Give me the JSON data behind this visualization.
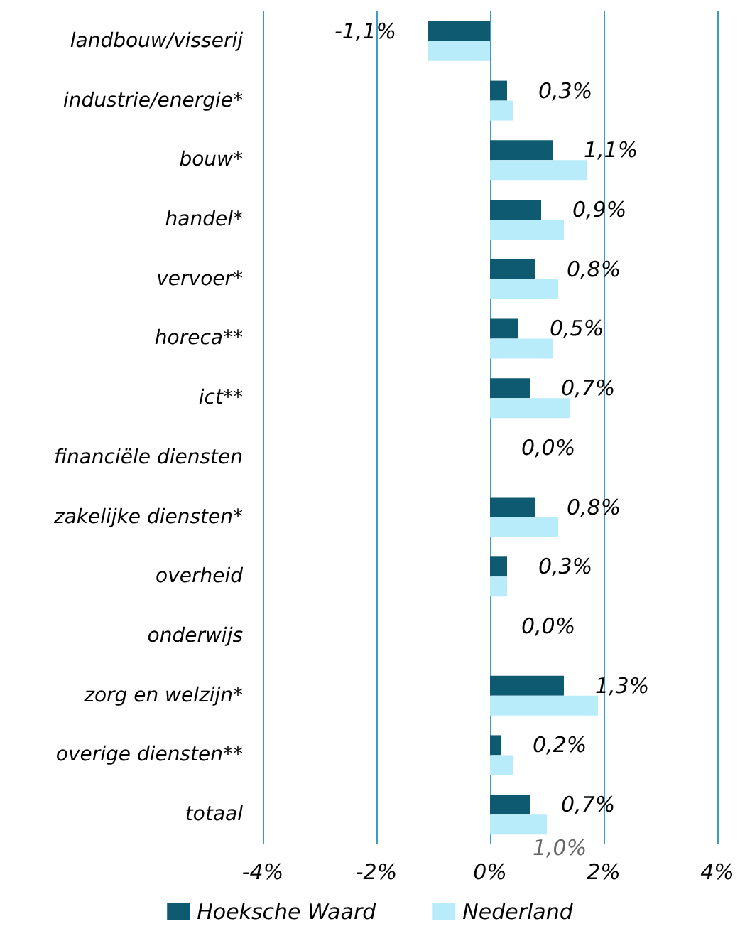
{
  "chart_data": {
    "type": "bar",
    "orientation": "horizontal",
    "categories": [
      "landbouw/visserij",
      "industrie/energie*",
      "bouw*",
      "handel*",
      "vervoer*",
      "horeca**",
      "ict**",
      "financiële diensten",
      "zakelijke diensten*",
      "overheid",
      "onderwijs",
      "zorg en welzijn*",
      "overige diensten**",
      "totaal"
    ],
    "series": [
      {
        "name": "Hoeksche Waard",
        "color": "#0e5a70",
        "values": [
          -1.1,
          0.3,
          1.1,
          0.9,
          0.8,
          0.5,
          0.7,
          0.0,
          0.8,
          0.3,
          0.0,
          1.3,
          0.2,
          0.7
        ],
        "value_labels": [
          "-1,1%",
          "0,3%",
          "1,1%",
          "0,9%",
          "0,8%",
          "0,5%",
          "0,7%",
          "0,0%",
          "0,8%",
          "0,3%",
          "0,0%",
          "1,3%",
          "0,2%",
          "0,7%"
        ]
      },
      {
        "name": "Nederland",
        "color": "#b9ecfa",
        "values": [
          -1.1,
          0.4,
          1.7,
          1.3,
          1.2,
          1.1,
          1.4,
          0.0,
          1.2,
          0.3,
          0.0,
          1.9,
          0.4,
          1.0
        ],
        "value_labels": [
          null,
          null,
          null,
          null,
          null,
          null,
          null,
          null,
          null,
          null,
          null,
          null,
          null,
          "1,0%"
        ]
      }
    ],
    "xlim": [
      -4,
      4
    ],
    "xticks": [
      {
        "value": -4,
        "label": "-4%"
      },
      {
        "value": -2,
        "label": "-2%"
      },
      {
        "value": 0,
        "label": "0%"
      },
      {
        "value": 2,
        "label": "2%"
      },
      {
        "value": 4,
        "label": "4%"
      }
    ],
    "grid": "x",
    "legend": "bottom"
  }
}
